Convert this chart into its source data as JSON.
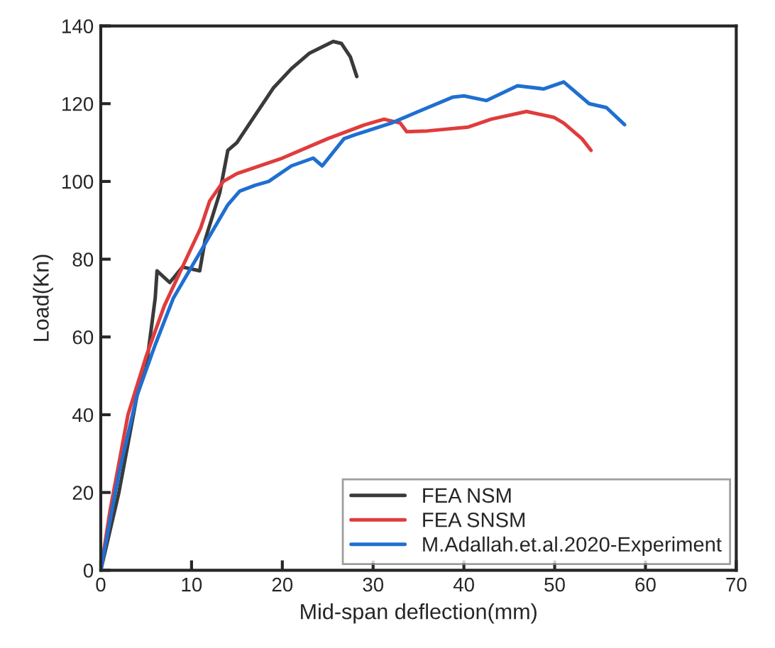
{
  "chart_data": {
    "type": "line",
    "xlabel": "Mid-span deflection(mm)",
    "ylabel": "Load(Kn)",
    "xlim": [
      0,
      70
    ],
    "xticks": [
      0,
      10,
      20,
      30,
      40,
      50,
      60,
      70
    ],
    "ylim": [
      0,
      140
    ],
    "yticks": [
      0,
      20,
      40,
      60,
      80,
      100,
      120,
      140
    ],
    "grid": false,
    "legend": "bottom right",
    "line_style": "solid",
    "marker": "none",
    "series": [
      {
        "name": "FEA NSM",
        "color": "#3a3a3a",
        "x": [
          0,
          2,
          4,
          5,
          6,
          6.2,
          7.6,
          9,
          10.9,
          11.5,
          13.1,
          14,
          15,
          17,
          19,
          21,
          23,
          25.6,
          26.5,
          27.5,
          28.2
        ],
        "values": [
          0,
          20,
          45,
          52,
          70,
          77,
          74,
          78,
          77,
          85,
          97,
          108,
          110,
          117,
          124,
          129,
          133,
          136,
          135.5,
          132,
          127
        ]
      },
      {
        "name": "FEA SNSM",
        "color": "#e03c3c",
        "x": [
          0,
          1,
          3,
          5,
          7,
          9,
          11,
          12,
          13.5,
          15,
          20,
          25,
          29,
          31.2,
          33,
          33.7,
          36,
          40.5,
          43,
          46.9,
          49.9,
          51,
          53,
          54
        ],
        "values": [
          0,
          15,
          40,
          55,
          68,
          78,
          88,
          95,
          100,
          102,
          106,
          111,
          114.5,
          116,
          115,
          112.8,
          113,
          114,
          116,
          118,
          116.5,
          115,
          111,
          108
        ]
      },
      {
        "name": "M.Adallah.et.al.2020-Experiment",
        "color": "#1f6fd0",
        "x": [
          0,
          2,
          4,
          6,
          8,
          10,
          12,
          14,
          15.3,
          17,
          18.5,
          21,
          23.4,
          24.4,
          26.8,
          28,
          32,
          35,
          38.8,
          40,
          42.5,
          45.9,
          48.8,
          51,
          53.8,
          55.7,
          57.7
        ],
        "values": [
          0,
          25,
          45,
          58,
          70,
          78,
          86,
          94,
          97.5,
          99,
          100,
          104,
          106,
          104,
          111,
          112,
          115,
          118,
          121.7,
          122,
          120.8,
          124.6,
          123.8,
          125.6,
          120,
          119,
          114.6
        ]
      }
    ]
  }
}
